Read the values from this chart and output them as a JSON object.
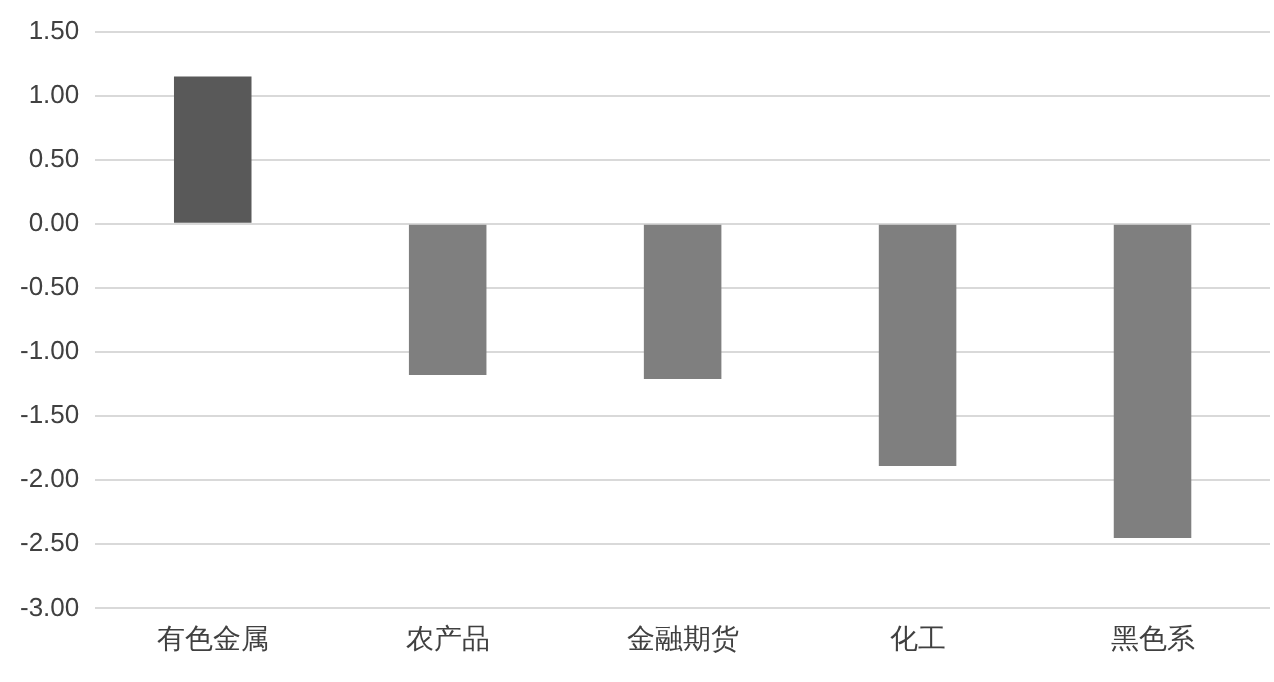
{
  "chart_data": {
    "type": "bar",
    "categories": [
      "有色金属",
      "农产品",
      "金融期货",
      "化工",
      "黑色系"
    ],
    "values": [
      1.15,
      -1.18,
      -1.21,
      -1.89,
      -2.45
    ],
    "colors": [
      "#595959",
      "#7f7f7f",
      "#7f7f7f",
      "#7f7f7f",
      "#7f7f7f"
    ],
    "ylim": [
      -3,
      1.5
    ],
    "yticks": [
      {
        "value": -3,
        "label": "-3.00"
      },
      {
        "value": -2.5,
        "label": "-2.50"
      },
      {
        "value": -2,
        "label": "-2.00"
      },
      {
        "value": -1.5,
        "label": "-1.50"
      },
      {
        "value": -1,
        "label": "-1.00"
      },
      {
        "value": -0.5,
        "label": "-0.50"
      },
      {
        "value": 0,
        "label": "0.00"
      },
      {
        "value": 0.5,
        "label": "0.50"
      },
      {
        "value": 1,
        "label": "1.00"
      },
      {
        "value": 1.5,
        "label": "1.50"
      }
    ],
    "grid": "y",
    "legend": false
  }
}
